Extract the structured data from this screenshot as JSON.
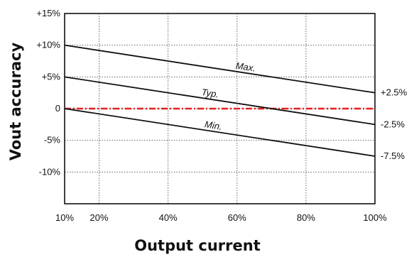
{
  "chart_data": {
    "type": "line",
    "xlabel": "Output current",
    "ylabel": "Vout accuracy",
    "xlim": [
      10,
      100
    ],
    "ylim": [
      -15,
      15
    ],
    "x_ticks": [
      {
        "value": 10,
        "label": "10%"
      },
      {
        "value": 20,
        "label": "20%"
      },
      {
        "value": 40,
        "label": "40%"
      },
      {
        "value": 60,
        "label": "60%"
      },
      {
        "value": 80,
        "label": "80%"
      },
      {
        "value": 100,
        "label": "100%"
      }
    ],
    "y_ticks": [
      {
        "value": 15,
        "label": "+15%"
      },
      {
        "value": 10,
        "label": "+10%"
      },
      {
        "value": 5,
        "label": "+5%"
      },
      {
        "value": 0,
        "label": "0"
      },
      {
        "value": -5,
        "label": "-5%"
      },
      {
        "value": -10,
        "label": "-10%"
      }
    ],
    "grid": true,
    "series": [
      {
        "name": "Max.",
        "x": [
          10,
          100
        ],
        "y": [
          10,
          2.5
        ],
        "end_label": "+2.5%",
        "color": "#111111"
      },
      {
        "name": "Typ.",
        "x": [
          10,
          100
        ],
        "y": [
          5,
          -2.5
        ],
        "end_label": "-2.5%",
        "color": "#111111"
      },
      {
        "name": "Min.",
        "x": [
          10,
          100
        ],
        "y": [
          0,
          -7.5
        ],
        "end_label": "-7.5%",
        "color": "#111111"
      }
    ],
    "reference_line": {
      "y": 0,
      "color": "#e8201f",
      "style": "dash-dot"
    }
  }
}
